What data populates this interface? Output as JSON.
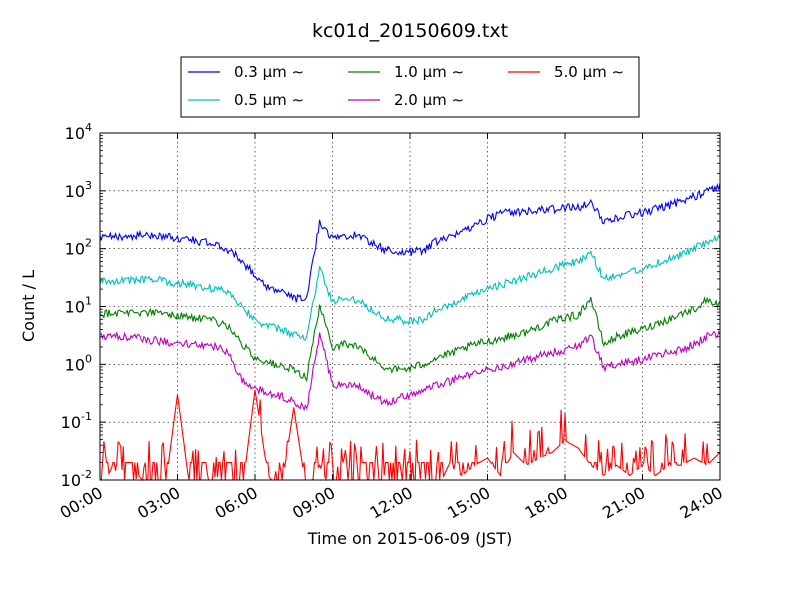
{
  "chart_data": {
    "type": "line",
    "title": "kc01d_20150609.txt",
    "xlabel": "Time on 2015-06-09 (JST)",
    "ylabel": "Count / L",
    "yscale": "log",
    "ylim": [
      0.01,
      10000
    ],
    "xlim": [
      "2015-06-09 00:00",
      "2015-06-10 00:00"
    ],
    "grid": true,
    "legend_placement": "top-center",
    "x_ticks": [
      "00:00",
      "03:00",
      "06:00",
      "09:00",
      "12:00",
      "15:00",
      "18:00",
      "21:00",
      "24:00"
    ],
    "y_ticks": [
      {
        "base": "10",
        "exp": "-2"
      },
      {
        "base": "10",
        "exp": "-1"
      },
      {
        "base": "10",
        "exp": "0"
      },
      {
        "base": "10",
        "exp": "1"
      },
      {
        "base": "10",
        "exp": "2"
      },
      {
        "base": "10",
        "exp": "3"
      },
      {
        "base": "10",
        "exp": "4"
      }
    ],
    "x": [
      "00:00",
      "00:30",
      "01:00",
      "01:30",
      "02:00",
      "02:30",
      "03:00",
      "03:30",
      "04:00",
      "04:30",
      "05:00",
      "05:30",
      "06:00",
      "06:30",
      "07:00",
      "07:30",
      "08:00",
      "08:30",
      "09:00",
      "09:30",
      "10:00",
      "10:30",
      "11:00",
      "11:30",
      "12:00",
      "12:30",
      "13:00",
      "13:30",
      "14:00",
      "14:30",
      "15:00",
      "15:30",
      "16:00",
      "16:30",
      "17:00",
      "17:30",
      "18:00",
      "18:30",
      "19:00",
      "19:30",
      "20:00",
      "20:30",
      "21:00",
      "21:30",
      "22:00",
      "22:30",
      "23:00",
      "23:30",
      "24:00"
    ],
    "series": [
      {
        "name": "0.3 μm ∼",
        "color": "#0000ff",
        "values": [
          150,
          160,
          165,
          170,
          170,
          165,
          150,
          145,
          130,
          115,
          95,
          60,
          35,
          22,
          18,
          14,
          13,
          300,
          150,
          170,
          170,
          130,
          95,
          90,
          85,
          95,
          130,
          150,
          200,
          260,
          330,
          400,
          430,
          450,
          460,
          480,
          500,
          520,
          600,
          300,
          350,
          380,
          420,
          480,
          560,
          660,
          800,
          1000,
          1200
        ]
      },
      {
        "name": "0.5 μm ∼",
        "color": "#00bfbf",
        "values": [
          27,
          28,
          28,
          29,
          29,
          28,
          25,
          24,
          22,
          20,
          18,
          10,
          6,
          4.5,
          4,
          3.2,
          2.9,
          45,
          12,
          14,
          13,
          9,
          6.5,
          6,
          5.5,
          6,
          8.5,
          10,
          13,
          16,
          20,
          24,
          27,
          32,
          38,
          45,
          55,
          58,
          85,
          30,
          35,
          40,
          45,
          55,
          65,
          80,
          100,
          130,
          150
        ]
      },
      {
        "name": "1.0 μm ∼",
        "color": "#008000",
        "values": [
          7.5,
          7.8,
          8,
          7.9,
          7.8,
          7.5,
          7,
          6.5,
          6,
          5.5,
          4.5,
          2.2,
          1.3,
          1.1,
          0.9,
          0.8,
          0.6,
          10,
          2,
          2.3,
          2,
          1.3,
          0.9,
          0.8,
          0.85,
          1,
          1.3,
          1.5,
          1.8,
          2.2,
          2.5,
          2.8,
          3.2,
          3.6,
          4.5,
          5.5,
          6.5,
          7,
          14,
          2.2,
          3,
          3.5,
          4,
          5,
          6,
          7.5,
          9,
          13,
          11
        ]
      },
      {
        "name": "2.0 μm ∼",
        "color": "#bf00bf",
        "values": [
          3,
          3.1,
          3,
          2.8,
          2.6,
          2.5,
          2.3,
          2.2,
          2.1,
          2,
          1.5,
          0.55,
          0.38,
          0.32,
          0.28,
          0.22,
          0.17,
          3.5,
          0.45,
          0.45,
          0.4,
          0.3,
          0.22,
          0.25,
          0.3,
          0.35,
          0.45,
          0.5,
          0.6,
          0.7,
          0.8,
          0.9,
          1,
          1.2,
          1.4,
          1.6,
          1.8,
          2,
          3,
          0.9,
          1,
          1.1,
          1.2,
          1.4,
          1.6,
          1.8,
          2.2,
          3,
          3.5
        ]
      },
      {
        "name": "5.0 μm ∼",
        "color": "#ff0000",
        "values": [
          0.01,
          0.03,
          0.01,
          0.02,
          0.01,
          0.01,
          0.5,
          0.01,
          0.01,
          0.02,
          0.01,
          0.01,
          0.6,
          0.02,
          0.01,
          0.3,
          0.01,
          0.03,
          0.01,
          0.01,
          0.01,
          0.01,
          0.02,
          0.01,
          0.01,
          0.02,
          0.01,
          0.03,
          0.02,
          0.03,
          0.04,
          0.02,
          0.05,
          0.03,
          0.04,
          0.05,
          0.08,
          0.06,
          0.03,
          0.02,
          0.03,
          0.02,
          0.03,
          0.02,
          0.03,
          0.03,
          0.04,
          0.03,
          0.05
        ]
      }
    ]
  }
}
